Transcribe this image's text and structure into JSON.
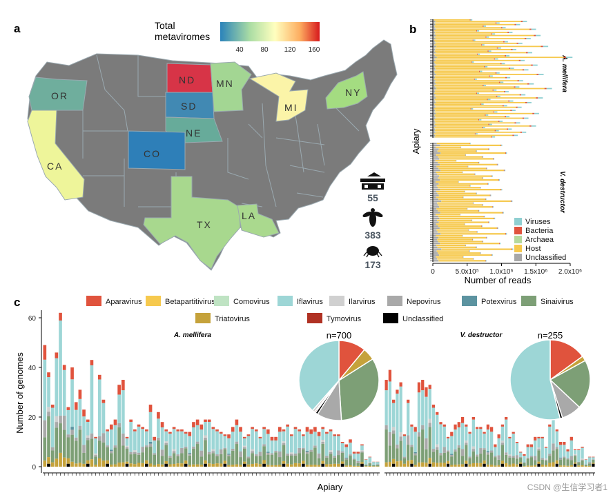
{
  "panel_a": {
    "letter": "a",
    "legend_title_line1": "Total",
    "legend_title_line2": "metaviromes",
    "legend_ticks": [
      "40",
      "80",
      "120",
      "160"
    ],
    "colors": {
      "low": "#2b83ba",
      "mid": "#ffffbf",
      "high": "#d7191c",
      "gray": "#7b7b7b",
      "stroke": "#9aa9b0"
    },
    "states": [
      {
        "abbr": "OR",
        "value": 62,
        "color": "#6fae9d"
      },
      {
        "abbr": "CA",
        "value": 92,
        "color": "#eef59a"
      },
      {
        "abbr": "ND",
        "value": 170,
        "color": "#d73447"
      },
      {
        "abbr": "SD",
        "value": 35,
        "color": "#4189b3"
      },
      {
        "abbr": "NE",
        "value": 62,
        "color": "#67ab9a"
      },
      {
        "abbr": "CO",
        "value": 22,
        "color": "#2e7fb8"
      },
      {
        "abbr": "MN",
        "value": 82,
        "color": "#a3d693"
      },
      {
        "abbr": "MI",
        "value": 98,
        "color": "#fbf4a8"
      },
      {
        "abbr": "NY",
        "value": 84,
        "color": "#a4dc81"
      },
      {
        "abbr": "TX",
        "value": 80,
        "color": "#a8d88e"
      },
      {
        "abbr": "LA",
        "value": 80,
        "color": "#aad98e"
      }
    ],
    "stats": [
      {
        "icon": "apiary-icon",
        "value": "55"
      },
      {
        "icon": "bee-icon",
        "value": "383"
      },
      {
        "icon": "mite-icon",
        "value": "173"
      }
    ]
  },
  "panel_b": {
    "letter": "b",
    "chart_data": {
      "type": "bar",
      "orientation": "horizontal",
      "stacked": true,
      "ylabel": "Apiary",
      "xlabel": "Number of reads",
      "xlim": [
        0,
        2000000
      ],
      "xticks": [
        {
          "value": 0,
          "label": "0"
        },
        {
          "value": 500000,
          "label": "5.0x10⁵"
        },
        {
          "value": 1000000,
          "label": "1.0x10⁶"
        },
        {
          "value": 1500000,
          "label": "1.5x10⁶"
        },
        {
          "value": 2000000,
          "label": "2.0x10⁶"
        }
      ],
      "groups": [
        {
          "name": "A. mellifera",
          "host_totals": [
            520000,
            1240000,
            880000,
            1150000,
            700000,
            960000,
            1360000,
            610000,
            1050000,
            820000,
            1420000,
            740000,
            1290000,
            560000,
            990000,
            1180000,
            680000,
            1520000,
            900000,
            1100000,
            770000,
            1310000,
            620000,
            1010000,
            1840000,
            860000,
            1210000,
            540000,
            950000,
            1380000,
            720000,
            1070000,
            1260000,
            650000,
            880000,
            1460000,
            790000,
            1020000,
            580000,
            1190000,
            930000,
            1330000,
            700000,
            1140000,
            1570000,
            840000,
            1000000,
            610000,
            1220000,
            890000,
            1450000,
            760000,
            1060000,
            1300000,
            670000,
            980000,
            1170000,
            530000,
            1090000,
            850000,
            1400000,
            730000,
            1010000,
            1260000,
            640000,
            920000,
            1150000,
            780000,
            1360000,
            690000,
            1040000,
            870000,
            1230000,
            590000,
            1120000,
            820000
          ],
          "virus_frac": 0.05,
          "bact_frac": 0.02,
          "arch_frac": 0.005,
          "uncl_frac": 0.03
        },
        {
          "name": "V. destructor",
          "host_totals": [
            480000,
            880000,
            360000,
            720000,
            560000,
            940000,
            420000,
            640000,
            780000,
            300000,
            590000,
            830000,
            450000,
            690000,
            920000,
            380000,
            540000,
            760000,
            640000,
            850000,
            330000,
            710000,
            480000,
            610000,
            880000,
            410000,
            560000,
            740000,
            390000,
            680000,
            1010000,
            520000,
            640000,
            770000,
            440000,
            590000,
            900000,
            350000,
            660000,
            790000,
            500000,
            720000,
            410000,
            630000,
            830000,
            460000,
            570000,
            940000,
            380000,
            690000,
            510000,
            640000,
            860000,
            420000,
            560000,
            1020000,
            470000,
            610000,
            760000,
            390000,
            520000,
            680000
          ],
          "virus_frac": 0.015,
          "bact_frac": 0.01,
          "arch_frac": 0.003,
          "uncl_frac": 0.12
        }
      ],
      "legend": [
        {
          "label": "Viruses",
          "color": "#8fcfd1"
        },
        {
          "label": "Bacteria",
          "color": "#e0533d"
        },
        {
          "label": "Archaea",
          "color": "#b5d99c"
        },
        {
          "label": "Host",
          "color": "#f6c94e"
        },
        {
          "label": "Unclassified",
          "color": "#a7a7a7"
        }
      ]
    }
  },
  "panel_c": {
    "letter": "c",
    "chart_data": {
      "type": "bar",
      "stacked": true,
      "ylabel": "Number of genomes",
      "xlabel": "Apiary",
      "ylim": [
        0,
        65
      ],
      "yticks": [
        0,
        20,
        40,
        60
      ],
      "legend": [
        {
          "label": "Aparavirus",
          "color": "#e0533d"
        },
        {
          "label": "Betapartitivirus",
          "color": "#f6c94e"
        },
        {
          "label": "Comovirus",
          "color": "#bfe3c3"
        },
        {
          "label": "Iflavirus",
          "color": "#9dd6d6"
        },
        {
          "label": "Ilarvirus",
          "color": "#d0d0d0"
        },
        {
          "label": "Nepovirus",
          "color": "#a9a9a9"
        },
        {
          "label": "Potexvirus",
          "color": "#5c93a0"
        },
        {
          "label": "Sinaivirus",
          "color": "#7d9f76"
        },
        {
          "label": "Triatovirus",
          "color": "#c5a23b"
        },
        {
          "label": "Tymovirus",
          "color": "#b03123"
        },
        {
          "label": "Unclassified",
          "color": "#000000"
        }
      ],
      "groups": [
        {
          "name": "A. mellifera",
          "n_label": "n=700",
          "totals": [
            49,
            38,
            25,
            46,
            62,
            41,
            24,
            40,
            26,
            31,
            23,
            19,
            43,
            12,
            37,
            27,
            15,
            17,
            19,
            33,
            35,
            12,
            19,
            15,
            17,
            16,
            15,
            25,
            12,
            22,
            18,
            15,
            14,
            16,
            15,
            15,
            14,
            14,
            18,
            19,
            17,
            19,
            19,
            16,
            15,
            14,
            13,
            13,
            16,
            19,
            16,
            12,
            13,
            16,
            15,
            12,
            16,
            15,
            12,
            12,
            16,
            15,
            17,
            13,
            16,
            15,
            13,
            16,
            15,
            16,
            14,
            16,
            14,
            15,
            13,
            13,
            10,
            9,
            11,
            6,
            6,
            9,
            3,
            4,
            2,
            2
          ],
          "pie": [
            {
              "genus": "Aparavirus",
              "value": 11
            },
            {
              "genus": "Triatovirus",
              "value": 5
            },
            {
              "genus": "Sinaivirus",
              "value": 33
            },
            {
              "genus": "Nepovirus",
              "value": 10
            },
            {
              "genus": "Unclassified",
              "value": 1
            },
            {
              "genus": "Tymovirus",
              "value": 0.5
            },
            {
              "genus": "Ilarvirus",
              "value": 1
            },
            {
              "genus": "Iflavirus",
              "value": 38.5
            }
          ]
        },
        {
          "name": "V. destructor",
          "n_label": "n=255",
          "totals": [
            35,
            39,
            27,
            31,
            34,
            13,
            27,
            17,
            16,
            34,
            35,
            32,
            33,
            25,
            22,
            18,
            17,
            12,
            14,
            17,
            18,
            20,
            17,
            14,
            20,
            16,
            16,
            14,
            17,
            16,
            9,
            13,
            17,
            20,
            12,
            14,
            10,
            6,
            5,
            9,
            9,
            12,
            12,
            12,
            8,
            17,
            20,
            15,
            10,
            10,
            7,
            12,
            7,
            7,
            8,
            3,
            4,
            4
          ],
          "pie": [
            {
              "genus": "Aparavirus",
              "value": 15
            },
            {
              "genus": "Triatovirus",
              "value": 2
            },
            {
              "genus": "Sinaivirus",
              "value": 20
            },
            {
              "genus": "Nepovirus",
              "value": 8
            },
            {
              "genus": "Unclassified",
              "value": 1
            },
            {
              "genus": "Iflavirus",
              "value": 54
            }
          ]
        }
      ]
    }
  },
  "watermark": "CSDN @生信学习者1"
}
